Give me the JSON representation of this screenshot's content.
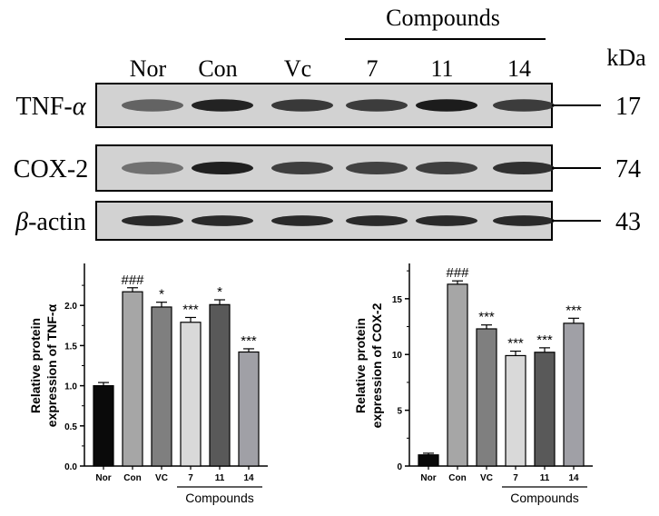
{
  "blot": {
    "compounds_label": "Compounds",
    "kda_label": "kDa",
    "lanes": [
      "Nor",
      "Con",
      "Vc",
      "7",
      "11",
      "14"
    ],
    "rows": [
      {
        "label_prefix": "TNF-",
        "label_greek": "α",
        "label_suffix": "",
        "kda": "17",
        "intensity": [
          0.45,
          0.9,
          0.75,
          0.72,
          0.95,
          0.72
        ]
      },
      {
        "label_prefix": "COX-2",
        "label_greek": "",
        "label_suffix": "",
        "kda": "74",
        "intensity": [
          0.35,
          0.92,
          0.7,
          0.68,
          0.7,
          0.8
        ]
      },
      {
        "label_prefix": "",
        "label_greek": "β",
        "label_suffix": "-actin",
        "kda": "43",
        "intensity": [
          0.85,
          0.85,
          0.85,
          0.85,
          0.85,
          0.85
        ]
      }
    ]
  },
  "chart_data": [
    {
      "type": "bar",
      "ylabel": "Relative  protein\nexpression of TNF-α",
      "categories": [
        "Nor",
        "Con",
        "VC",
        "7",
        "11",
        "14"
      ],
      "values": [
        1.0,
        2.17,
        1.98,
        1.79,
        2.01,
        1.42
      ],
      "errors": [
        0.04,
        0.05,
        0.06,
        0.06,
        0.06,
        0.04
      ],
      "annotations": [
        "",
        "###",
        "*",
        "***",
        "*",
        "***"
      ],
      "bar_colors": [
        "#0a0a0a",
        "#a6a6a6",
        "#7f7f7f",
        "#d9d9d9",
        "#595959",
        "#a0a0a6"
      ],
      "ylim": [
        0,
        2.5
      ],
      "yticks": [
        "0.0",
        "0.5",
        "1.0",
        "1.5",
        "2.0"
      ],
      "ytick_values": [
        0,
        0.5,
        1.0,
        1.5,
        2.0
      ],
      "group_label": "Compounds",
      "grid": false
    },
    {
      "type": "bar",
      "ylabel": "Relative  protein\nexpression of COX-2",
      "categories": [
        "Nor",
        "Con",
        "VC",
        "7",
        "11",
        "14"
      ],
      "values": [
        1.0,
        16.3,
        12.3,
        9.9,
        10.2,
        12.8
      ],
      "errors": [
        0.15,
        0.3,
        0.35,
        0.4,
        0.4,
        0.45
      ],
      "annotations": [
        "",
        "###",
        "***",
        "***",
        "***",
        "***"
      ],
      "bar_colors": [
        "#0a0a0a",
        "#a6a6a6",
        "#7f7f7f",
        "#d9d9d9",
        "#595959",
        "#a0a0a6"
      ],
      "ylim": [
        0,
        18
      ],
      "yticks": [
        "0",
        "5",
        "10",
        "15"
      ],
      "ytick_values": [
        0,
        5,
        10,
        15
      ],
      "group_label": "Compounds",
      "grid": false
    }
  ]
}
